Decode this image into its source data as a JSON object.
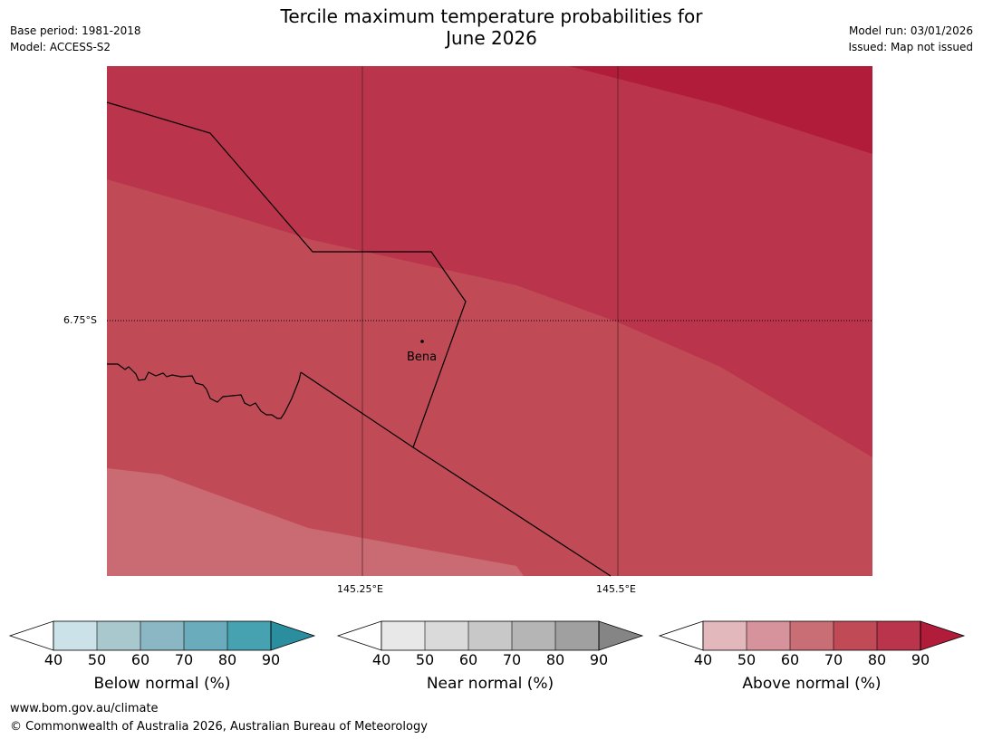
{
  "header": {
    "title_line1": "Tercile maximum temperature probabilities for",
    "title_line2": "June 2026",
    "base_period": "Base period: 1981-2018",
    "model": "Model: ACCESS-S2",
    "model_run": "Model run: 03/01/2026",
    "issued": "Issued: Map not issued"
  },
  "map": {
    "lat_label": "6.75°S",
    "lon_labels": [
      "145.25°E",
      "145.5°E"
    ],
    "place": "Bena",
    "band_colors": {
      "above_90": "#b01c39",
      "above_80": "#ba344b",
      "above_70": "#c04b56",
      "above_60": "#ca6b74"
    }
  },
  "colorbars": [
    {
      "label": "Below normal (%)",
      "ticks": [
        "40",
        "50",
        "60",
        "70",
        "80",
        "90"
      ],
      "colors": [
        "#cbe3e8",
        "#a8c8ce",
        "#8ab7c3",
        "#6aacbb",
        "#46a1b0",
        "#2b8e9f"
      ]
    },
    {
      "label": "Near normal (%)",
      "ticks": [
        "40",
        "50",
        "60",
        "70",
        "80",
        "90"
      ],
      "colors": [
        "#e8e8e8",
        "#dadada",
        "#c8c8c8",
        "#b5b5b5",
        "#a0a0a0",
        "#858585"
      ]
    },
    {
      "label": "Above normal (%)",
      "ticks": [
        "40",
        "50",
        "60",
        "70",
        "80",
        "90"
      ],
      "colors": [
        "#e2b8bd",
        "#d6939b",
        "#ca6e75",
        "#c04b56",
        "#ba344b",
        "#b01c39"
      ]
    }
  ],
  "footer": {
    "url": "www.bom.gov.au/climate",
    "copyright": "© Commonwealth of Australia 2026, Australian Bureau of Meteorology"
  }
}
